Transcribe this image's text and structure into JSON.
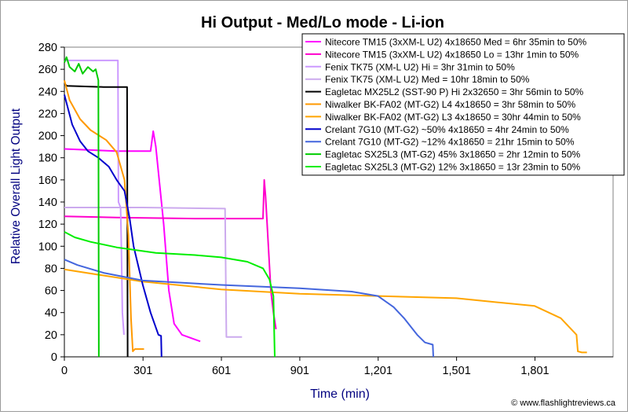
{
  "chart_data": {
    "type": "line",
    "title": "Hi Output - Med/Lo mode - Li-ion",
    "xlabel": "Time (min)",
    "ylabel": "Relative Overall Light Output",
    "xlim": [
      0,
      2100
    ],
    "ylim": [
      0,
      280
    ],
    "xticks": [
      0,
      301,
      601,
      901,
      1201,
      1501,
      1801
    ],
    "yticks": [
      0,
      20,
      40,
      60,
      80,
      100,
      120,
      140,
      160,
      180,
      200,
      220,
      240,
      260,
      280
    ],
    "grid": false,
    "legend_position": "top-right",
    "credit": "© www.flashlightreviews.ca",
    "series": [
      {
        "name": "Nitecore TM15 (3xXM-L U2) 4x18650 Med = 6hr 35min to 50%",
        "color": "#ff00ff",
        "points": [
          [
            0,
            188
          ],
          [
            100,
            187
          ],
          [
            200,
            186
          ],
          [
            330,
            186
          ],
          [
            340,
            204
          ],
          [
            350,
            190
          ],
          [
            380,
            120
          ],
          [
            400,
            60
          ],
          [
            420,
            30
          ],
          [
            450,
            20
          ],
          [
            520,
            14
          ]
        ]
      },
      {
        "name": "Nitecore TM15 (3xXM-L U2) 4x18650 Lo = 13hr 1min to 50%",
        "color": "#ff00cc",
        "points": [
          [
            0,
            127
          ],
          [
            200,
            126
          ],
          [
            500,
            125
          ],
          [
            760,
            125
          ],
          [
            765,
            160
          ],
          [
            770,
            145
          ],
          [
            775,
            124
          ],
          [
            790,
            60
          ],
          [
            800,
            40
          ],
          [
            810,
            25
          ]
        ]
      },
      {
        "name": "Fenix TK75 (XM-L U2) Hi = 3hr 31min to 50%",
        "color": "#cc99ff",
        "points": [
          [
            0,
            268
          ],
          [
            100,
            268
          ],
          [
            205,
            268
          ],
          [
            207,
            140
          ],
          [
            215,
            135
          ],
          [
            218,
            100
          ],
          [
            222,
            40
          ],
          [
            228,
            20
          ]
        ]
      },
      {
        "name": "Fenix TK75 (XM-L U2) Med = 10hr 18min to 50%",
        "color": "#ccaaee",
        "points": [
          [
            0,
            135
          ],
          [
            300,
            135
          ],
          [
            615,
            134
          ],
          [
            620,
            18
          ],
          [
            680,
            18
          ]
        ]
      },
      {
        "name": "Eagletac MX25L2 (SST-90 P) Hi 2x32650 = 3hr 56min to 50%",
        "color": "#000000",
        "points": [
          [
            0,
            247
          ],
          [
            10,
            245
          ],
          [
            150,
            244
          ],
          [
            240,
            244
          ],
          [
            242,
            0
          ]
        ]
      },
      {
        "name": "Niwalker BK-FA02 (MT-G2) L4 4x18650 = 3hr 58min to 50%",
        "color": "#ff9900",
        "points": [
          [
            0,
            250
          ],
          [
            20,
            232
          ],
          [
            60,
            215
          ],
          [
            100,
            205
          ],
          [
            160,
            196
          ],
          [
            200,
            185
          ],
          [
            230,
            160
          ],
          [
            245,
            110
          ],
          [
            255,
            35
          ],
          [
            262,
            5
          ],
          [
            270,
            7
          ],
          [
            305,
            7
          ]
        ]
      },
      {
        "name": "Niwalker BK-FA02 (MT-G2) L3 4x18650 = 30hr 44min to 50%",
        "color": "#ffa500",
        "points": [
          [
            0,
            79
          ],
          [
            300,
            68
          ],
          [
            600,
            61
          ],
          [
            900,
            57
          ],
          [
            1200,
            55
          ],
          [
            1500,
            53
          ],
          [
            1800,
            46
          ],
          [
            1900,
            35
          ],
          [
            1960,
            20
          ],
          [
            1965,
            5
          ],
          [
            1980,
            4
          ],
          [
            2000,
            4
          ]
        ]
      },
      {
        "name": "Crelant 7G10 (MT-G2) ~50% 4x18650 = 4hr 24min to 50%",
        "color": "#0000cc",
        "points": [
          [
            0,
            237
          ],
          [
            30,
            210
          ],
          [
            60,
            195
          ],
          [
            90,
            186
          ],
          [
            130,
            180
          ],
          [
            170,
            172
          ],
          [
            200,
            160
          ],
          [
            230,
            150
          ],
          [
            250,
            125
          ],
          [
            265,
            100
          ],
          [
            280,
            85
          ],
          [
            300,
            65
          ],
          [
            330,
            40
          ],
          [
            360,
            20
          ],
          [
            370,
            19
          ],
          [
            372,
            0
          ]
        ]
      },
      {
        "name": "Crelant 7G10 (MT-G2) ~12% 4x18650 = 21hr 15min to 50%",
        "color": "#4466dd",
        "points": [
          [
            0,
            88
          ],
          [
            50,
            83
          ],
          [
            150,
            76
          ],
          [
            300,
            69
          ],
          [
            600,
            65
          ],
          [
            900,
            62
          ],
          [
            1100,
            59
          ],
          [
            1200,
            55
          ],
          [
            1260,
            45
          ],
          [
            1300,
            35
          ],
          [
            1350,
            20
          ],
          [
            1380,
            13
          ],
          [
            1410,
            11
          ],
          [
            1412,
            0
          ]
        ]
      },
      {
        "name": "Eagletac SX25L3 (MT-G2) 45% 3x18650 = 2hr 12min to 50%",
        "color": "#00cc00",
        "points": [
          [
            0,
            266
          ],
          [
            8,
            271
          ],
          [
            20,
            262
          ],
          [
            40,
            258
          ],
          [
            55,
            265
          ],
          [
            70,
            256
          ],
          [
            90,
            262
          ],
          [
            110,
            258
          ],
          [
            120,
            260
          ],
          [
            125,
            255
          ],
          [
            130,
            250
          ],
          [
            132,
            0
          ]
        ]
      },
      {
        "name": "Eagletac SX25L3 (MT-G2) 12% 3x18650 = 13r 23min to 50%",
        "color": "#00ee00",
        "points": [
          [
            0,
            113
          ],
          [
            40,
            108
          ],
          [
            100,
            104
          ],
          [
            200,
            99
          ],
          [
            350,
            94
          ],
          [
            500,
            92
          ],
          [
            600,
            90
          ],
          [
            700,
            86
          ],
          [
            760,
            80
          ],
          [
            785,
            70
          ],
          [
            800,
            55
          ],
          [
            805,
            0
          ]
        ]
      }
    ]
  }
}
